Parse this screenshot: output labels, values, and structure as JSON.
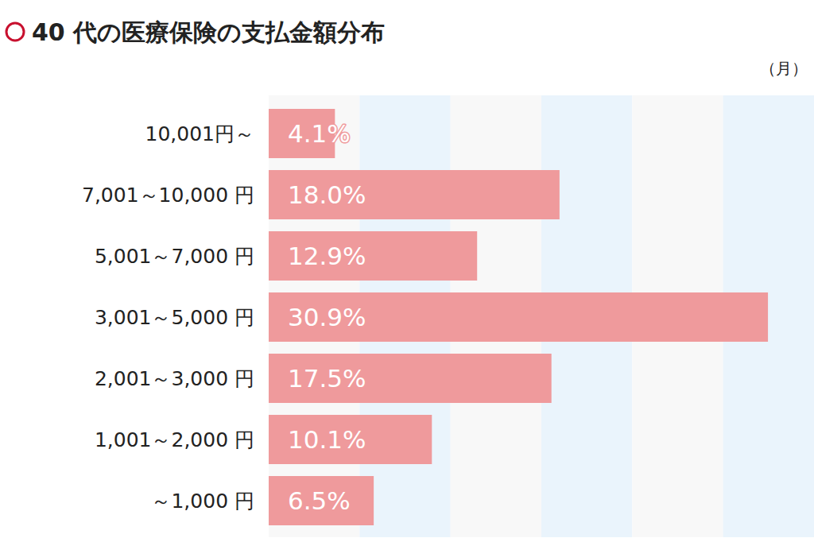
{
  "chart_data": {
    "type": "bar",
    "orientation": "horizontal",
    "title": "40 代の医療保険の支払金額分布",
    "annotation": "（月）",
    "categories": [
      "10,001円～",
      "7,001～10,000 円",
      "5,001～7,000 円",
      "3,001～5,000 円",
      "2,001～3,000 円",
      "1,001～2,000 円",
      "～1,000 円"
    ],
    "values": [
      4.1,
      18.0,
      12.9,
      30.9,
      17.5,
      10.1,
      6.5
    ],
    "value_labels": [
      "4.1%",
      "18.0%",
      "12.9%",
      "30.9%",
      "17.5%",
      "10.1%",
      "6.5%"
    ],
    "color": "#ef9a9c",
    "xlim": [
      0,
      33.75
    ],
    "xticks": [
      0,
      5.625,
      11.25,
      16.875,
      22.5,
      28.125,
      33.75
    ],
    "grid": true,
    "tick_labels": "y",
    "data_labels": true
  }
}
